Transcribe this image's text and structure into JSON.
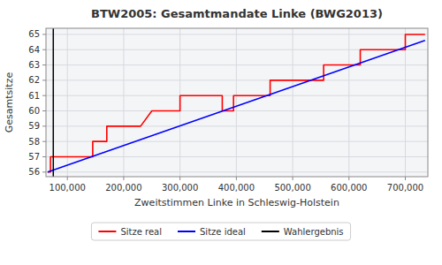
{
  "chart_data": {
    "type": "line",
    "title": "BTW2005: Gesamtmandate Linke (BWG2013)",
    "x_label": "Zweitstimmen Linke in Schleswig-Holstein",
    "y_label": "Gesamtsitze",
    "xlim": [
      62000,
      740000
    ],
    "ylim": [
      55.7,
      65.4
    ],
    "xticks": [
      {
        "value": 100000,
        "label": "100,000"
      },
      {
        "value": 200000,
        "label": "200,000"
      },
      {
        "value": 300000,
        "label": "300,000"
      },
      {
        "value": 400000,
        "label": "400,000"
      },
      {
        "value": 500000,
        "label": "500,000"
      },
      {
        "value": 600000,
        "label": "600,000"
      },
      {
        "value": 700000,
        "label": "700,000"
      }
    ],
    "yticks": [
      56,
      57,
      58,
      59,
      60,
      61,
      62,
      63,
      64,
      65
    ],
    "grid": true,
    "legend": "bottom",
    "series": [
      {
        "name": "Sitze real",
        "color": "red",
        "x": [
          65000,
          70000,
          70000,
          100000,
          100000,
          145000,
          145000,
          170000,
          170000,
          230000,
          230000,
          250000,
          250000,
          300000,
          300000,
          320000,
          320000,
          375000,
          375000,
          395000,
          395000,
          460000,
          460000,
          490000,
          490000,
          555000,
          555000,
          580000,
          580000,
          620000,
          620000,
          640000,
          640000,
          700000,
          700000,
          735000
        ],
        "values": [
          56,
          56,
          57,
          57,
          57,
          57,
          58,
          58,
          59,
          59,
          59,
          60,
          60,
          60,
          61,
          61,
          61,
          61,
          60,
          60,
          61,
          61,
          62,
          62,
          62,
          62,
          63,
          63,
          63,
          63,
          64,
          64,
          64,
          64,
          65,
          65
        ]
      },
      {
        "name": "Sitze ideal",
        "color": "blue",
        "x": [
          65000,
          735000
        ],
        "values": [
          56.0,
          64.6
        ]
      },
      {
        "name": "Wahlergebnis",
        "color": "black",
        "type": "vline",
        "x": [
          75000
        ]
      }
    ]
  }
}
